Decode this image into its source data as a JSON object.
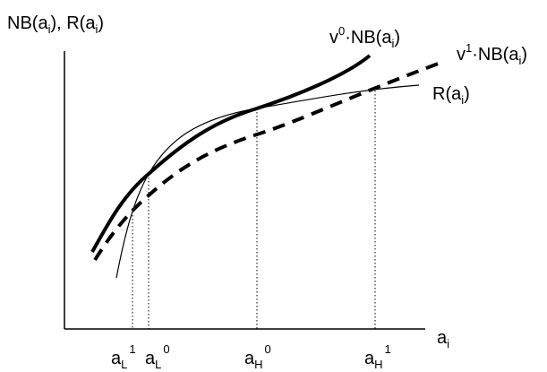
{
  "y_axis": {
    "label_main": "NB(a",
    "label_sub1": "i",
    "label_mid": "), R(a",
    "label_sub2": "i",
    "label_end": ")"
  },
  "x_axis": {
    "label_main": "a",
    "label_sub": "i"
  },
  "curves": {
    "nb_v0": {
      "prefix": "v",
      "sup": "0",
      "dot": "·NB(a",
      "sub": "i",
      "end": ")"
    },
    "nb_v1": {
      "prefix": "v",
      "sup": "1",
      "dot": "·NB(a",
      "sub": "i",
      "end": ")"
    },
    "r": {
      "main": "R(a",
      "sub": "i",
      "end": ")"
    }
  },
  "tick_labels": {
    "aL1": {
      "base": "a",
      "sub": "L",
      "sup": "1"
    },
    "aL0": {
      "base": "a",
      "sub": "L",
      "sup": "0"
    },
    "aH0": {
      "base": "a",
      "sub": "H",
      "sup": "0"
    },
    "aH1": {
      "base": "a",
      "sub": "H",
      "sup": "1"
    }
  },
  "colors": {
    "ink": "#000000",
    "background": "#ffffff"
  }
}
